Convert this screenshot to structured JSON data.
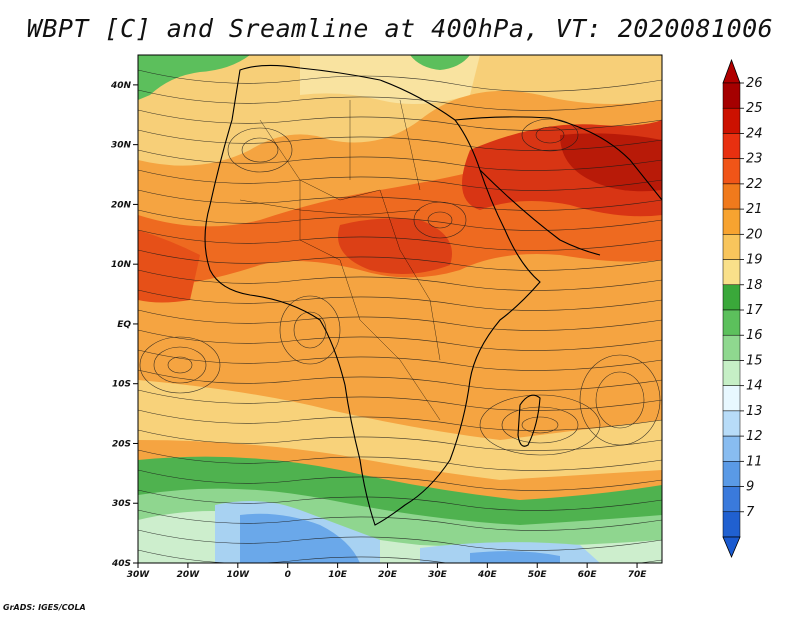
{
  "title": "WBPT [C] and Sreamline at 400hPa, VT: 2020081006",
  "x_ticks": [
    "30W",
    "20W",
    "10W",
    "0",
    "10E",
    "20E",
    "30E",
    "40E",
    "50E",
    "60E",
    "70E"
  ],
  "y_ticks": [
    "40N",
    "30N",
    "20N",
    "10N",
    "EQ",
    "10S",
    "20S",
    "30S",
    "40S"
  ],
  "colorbar": {
    "levels": [
      "26",
      "25",
      "24",
      "23",
      "22",
      "21",
      "20",
      "19",
      "18",
      "17",
      "16",
      "15",
      "14",
      "13",
      "12",
      "11",
      "9",
      "7"
    ],
    "colors": [
      "#a50000",
      "#cc1100",
      "#e83010",
      "#f05518",
      "#f07a1c",
      "#f7a330",
      "#f8c55c",
      "#f9e08a",
      "#3aa83a",
      "#5cc05c",
      "#8fd88f",
      "#c6efc6",
      "#e8f8ff",
      "#b8dcf8",
      "#88bcf0",
      "#5a9ae6",
      "#3a7adc",
      "#2060d0"
    ],
    "top_arrow": "#b00000",
    "bottom_arrow": "#1a5ad0"
  },
  "credit": "GrADS: IGES/COLA"
}
